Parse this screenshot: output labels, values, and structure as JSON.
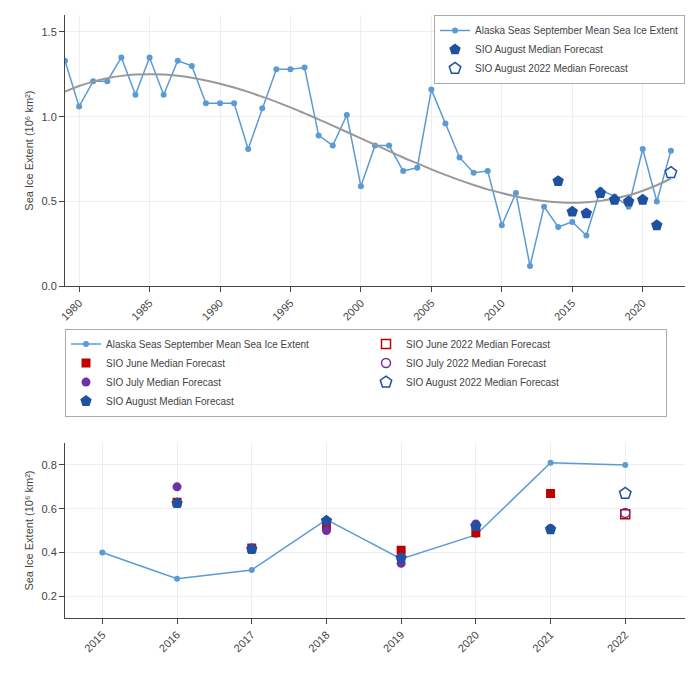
{
  "chart_data": [
    {
      "type": "line",
      "y_label": "Sea Ice Extent (10⁶ km²)",
      "xlim": [
        1979,
        2023
      ],
      "xticks": [
        1980,
        1985,
        1990,
        1995,
        2000,
        2005,
        2010,
        2015,
        2020
      ],
      "ylim": [
        0,
        1.6
      ],
      "yticks": [
        {
          "value": 0,
          "label": "0.0"
        },
        0.5,
        {
          "value": 1.0,
          "label": "1.0"
        },
        1.5
      ],
      "grid": true,
      "legend": "upper right",
      "series": [
        {
          "name": "Alaska Seas September Mean Sea Ice Extent",
          "type": "line",
          "marker": "circle",
          "line_style": "solid",
          "color": "#5b9bd5",
          "x": [
            1979,
            1980,
            1981,
            1982,
            1983,
            1984,
            1985,
            1986,
            1987,
            1988,
            1989,
            1990,
            1991,
            1992,
            1993,
            1994,
            1995,
            1996,
            1997,
            1998,
            1999,
            2000,
            2001,
            2002,
            2003,
            2004,
            2005,
            2006,
            2007,
            2008,
            2009,
            2010,
            2011,
            2012,
            2013,
            2014,
            2015,
            2016,
            2017,
            2018,
            2019,
            2020,
            2021,
            2022
          ],
          "values": [
            1.33,
            1.06,
            1.21,
            1.21,
            1.35,
            1.13,
            1.35,
            1.13,
            1.33,
            1.3,
            1.08,
            1.08,
            1.08,
            0.81,
            1.05,
            1.28,
            1.28,
            1.29,
            0.89,
            0.83,
            1.01,
            0.59,
            0.83,
            0.83,
            0.68,
            0.7,
            1.16,
            0.96,
            0.76,
            0.67,
            0.68,
            0.36,
            0.55,
            0.12,
            0.47,
            0.35,
            0.38,
            0.3,
            0.57,
            0.53,
            0.47,
            0.81,
            0.5,
            0.8
          ]
        },
        {
          "type": "line",
          "line_style": "solid",
          "color": "#999999",
          "x": [
            1979,
            1980,
            1981,
            1982,
            1983,
            1984,
            1985,
            1986,
            1987,
            1988,
            1989,
            1990,
            1991,
            1992,
            1993,
            1994,
            1995,
            1996,
            1997,
            1998,
            1999,
            2000,
            2001,
            2002,
            2003,
            2004,
            2005,
            2006,
            2007,
            2008,
            2009,
            2010,
            2011,
            2012,
            2013,
            2014,
            2015,
            2016,
            2017,
            2018,
            2019,
            2020,
            2021,
            2022
          ],
          "values": [
            1.148,
            1.181,
            1.207,
            1.227,
            1.241,
            1.249,
            1.251,
            1.249,
            1.242,
            1.23,
            1.214,
            1.195,
            1.173,
            1.147,
            1.118,
            1.088,
            1.055,
            1.02,
            0.985,
            0.948,
            0.91,
            0.872,
            0.835,
            0.797,
            0.76,
            0.725,
            0.69,
            0.657,
            0.626,
            0.598,
            0.572,
            0.55,
            0.53,
            0.515,
            0.503,
            0.496,
            0.493,
            0.496,
            0.504,
            0.518,
            0.537,
            0.564,
            0.596,
            0.636
          ]
        },
        {
          "name": "SIO August Median Forecast",
          "type": "scatter",
          "marker": "pentagon",
          "color": "#2050a0",
          "x": [
            2014,
            2015,
            2016,
            2017,
            2018,
            2019,
            2020,
            2021
          ],
          "values": [
            0.62,
            0.44,
            0.43,
            0.55,
            0.51,
            0.5,
            0.51,
            0.36
          ]
        },
        {
          "name": "SIO August 2022 Median Forecast",
          "type": "scatter",
          "marker": "pentagon-open",
          "color": "#2050a0",
          "x": [
            2022
          ],
          "values": [
            0.67
          ]
        }
      ]
    },
    {
      "type": "line",
      "y_label": "Sea Ice Extent (10⁶ km²)",
      "xlim": [
        2014.5,
        2022.8
      ],
      "xticks": [
        2015,
        2016,
        2017,
        2018,
        2019,
        2020,
        2021,
        2022
      ],
      "ylim": [
        0.1,
        0.9
      ],
      "yticks": [
        0.2,
        0.4,
        0.6,
        0.8
      ],
      "grid": true,
      "legend": "above",
      "series": [
        {
          "name": "Alaska Seas September Mean Sea Ice Extent",
          "type": "line",
          "marker": "circle",
          "line_style": "solid",
          "color": "#5b9bd5",
          "x": [
            2015,
            2016,
            2017,
            2018,
            2019,
            2020,
            2021,
            2022
          ],
          "values": [
            0.4,
            0.28,
            0.32,
            0.55,
            0.37,
            0.48,
            0.81,
            0.8
          ]
        },
        {
          "name": "SIO June Median Forecast",
          "type": "scatter",
          "marker": "square",
          "color": "#c00000",
          "x": [
            2016,
            2017,
            2018,
            2019,
            2020,
            2021
          ],
          "values": [
            0.63,
            0.42,
            0.52,
            0.41,
            0.49,
            0.67
          ]
        },
        {
          "name": "SIO July Median Forecast",
          "type": "scatter",
          "marker": "circle",
          "color": "#7030a0",
          "x": [
            2016,
            2017,
            2018,
            2019,
            2020,
            2021
          ],
          "values": [
            0.7,
            0.42,
            0.5,
            0.35,
            0.53,
            0.51
          ]
        },
        {
          "name": "SIO August Median Forecast",
          "type": "scatter",
          "marker": "pentagon",
          "color": "#2050a0",
          "x": [
            2016,
            2017,
            2018,
            2019,
            2020,
            2021
          ],
          "values": [
            0.625,
            0.415,
            0.545,
            0.375,
            0.52,
            0.505
          ]
        },
        {
          "name": "SIO June 2022 Median Forecast",
          "type": "scatter",
          "marker": "square-open",
          "color": "#c00000",
          "x": [
            2022
          ],
          "values": [
            0.575
          ]
        },
        {
          "name": "SIO July 2022 Median Forecast",
          "type": "scatter",
          "marker": "circle-open",
          "color": "#7030a0",
          "x": [
            2022
          ],
          "values": [
            0.58
          ]
        },
        {
          "name": "SIO August 2022 Median Forecast",
          "type": "scatter",
          "marker": "pentagon-open",
          "color": "#2050a0",
          "x": [
            2022
          ],
          "values": [
            0.67
          ]
        }
      ]
    }
  ]
}
